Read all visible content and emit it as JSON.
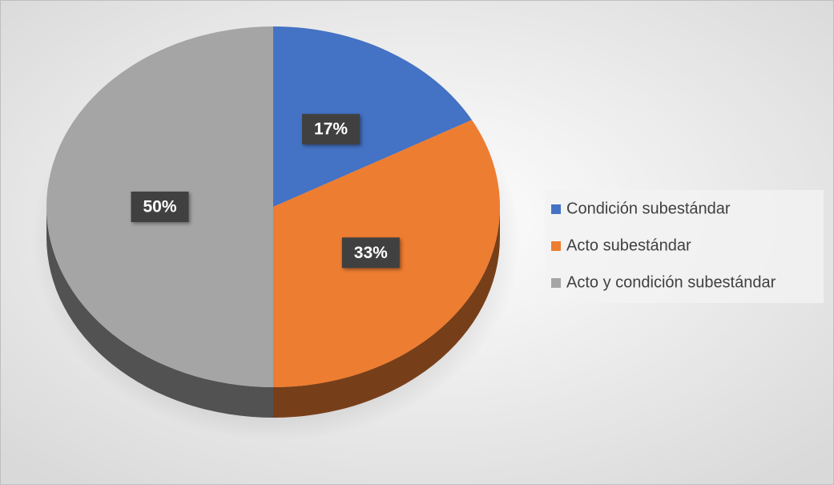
{
  "chart_data": {
    "type": "pie",
    "categories": [
      "Condición subestándar",
      "Acto subestándar",
      "Acto y condición subestándar"
    ],
    "values": [
      17,
      33,
      50
    ],
    "value_labels": [
      "17%",
      "33%",
      "50%"
    ],
    "colors": [
      "#4472c4",
      "#ed7d31",
      "#a5a5a5"
    ],
    "legend": "right"
  }
}
